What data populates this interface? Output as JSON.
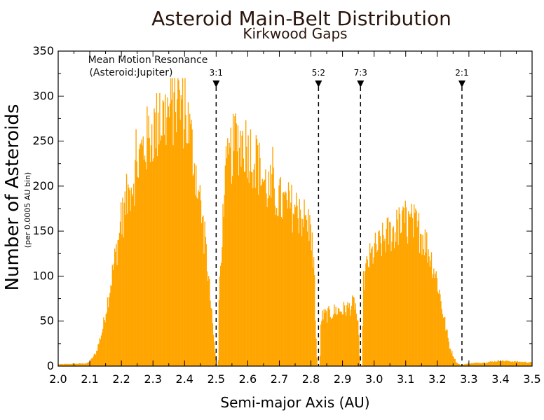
{
  "chart_data": {
    "type": "bar",
    "title": "Asteroid Main-Belt Distribution",
    "subtitle": "Kirkwood Gaps",
    "xlabel": "Semi-major Axis (AU)",
    "ylabel": "Number of Asteroids",
    "ylabel_sub": "(per 0.0005 AU bin)",
    "xlim": [
      2.0,
      3.5
    ],
    "ylim": [
      0,
      350
    ],
    "xticks": [
      "2.0",
      "2.1",
      "2.2",
      "2.3",
      "2.4",
      "2.5",
      "2.6",
      "2.7",
      "2.8",
      "2.9",
      "3.0",
      "3.1",
      "3.2",
      "3.3",
      "3.4",
      "3.5"
    ],
    "yticks": [
      "0",
      "50",
      "100",
      "150",
      "200",
      "250",
      "300",
      "350"
    ],
    "bar_color": "#ffa500",
    "annotation_title": "Mean Motion Resonance",
    "annotation_sub": "(Asteroid:Jupiter)",
    "resonances": [
      {
        "label": "3:1",
        "x": 2.5
      },
      {
        "label": "5:2",
        "x": 2.824
      },
      {
        "label": "7:3",
        "x": 2.957
      },
      {
        "label": "2:1",
        "x": 3.278
      }
    ],
    "profile": [
      [
        2.0,
        2
      ],
      [
        2.09,
        3
      ],
      [
        2.1,
        5
      ],
      [
        2.12,
        15
      ],
      [
        2.14,
        40
      ],
      [
        2.16,
        80
      ],
      [
        2.18,
        120
      ],
      [
        2.2,
        160
      ],
      [
        2.22,
        190
      ],
      [
        2.24,
        210
      ],
      [
        2.26,
        235
      ],
      [
        2.28,
        250
      ],
      [
        2.3,
        262
      ],
      [
        2.33,
        275
      ],
      [
        2.35,
        282
      ],
      [
        2.37,
        290
      ],
      [
        2.39,
        292
      ],
      [
        2.41,
        270
      ],
      [
        2.43,
        230
      ],
      [
        2.45,
        180
      ],
      [
        2.47,
        120
      ],
      [
        2.485,
        60
      ],
      [
        2.495,
        20
      ],
      [
        2.5,
        0
      ],
      [
        2.506,
        0
      ],
      [
        2.51,
        100
      ],
      [
        2.53,
        210
      ],
      [
        2.55,
        240
      ],
      [
        2.57,
        250
      ],
      [
        2.59,
        248
      ],
      [
        2.61,
        238
      ],
      [
        2.63,
        225
      ],
      [
        2.65,
        205
      ],
      [
        2.67,
        195
      ],
      [
        2.69,
        190
      ],
      [
        2.71,
        180
      ],
      [
        2.73,
        178
      ],
      [
        2.75,
        175
      ],
      [
        2.77,
        168
      ],
      [
        2.79,
        158
      ],
      [
        2.8,
        150
      ],
      [
        2.81,
        110
      ],
      [
        2.815,
        40
      ],
      [
        2.82,
        0
      ],
      [
        2.828,
        0
      ],
      [
        2.832,
        55
      ],
      [
        2.86,
        58
      ],
      [
        2.88,
        62
      ],
      [
        2.9,
        62
      ],
      [
        2.92,
        65
      ],
      [
        2.94,
        70
      ],
      [
        2.95,
        40
      ],
      [
        2.955,
        0
      ],
      [
        2.962,
        0
      ],
      [
        2.965,
        90
      ],
      [
        2.98,
        115
      ],
      [
        3.0,
        128
      ],
      [
        3.02,
        135
      ],
      [
        3.04,
        145
      ],
      [
        3.06,
        150
      ],
      [
        3.08,
        155
      ],
      [
        3.1,
        157
      ],
      [
        3.12,
        158
      ],
      [
        3.14,
        152
      ],
      [
        3.16,
        140
      ],
      [
        3.18,
        120
      ],
      [
        3.2,
        95
      ],
      [
        3.22,
        55
      ],
      [
        3.24,
        20
      ],
      [
        3.26,
        4
      ],
      [
        3.275,
        1
      ],
      [
        3.285,
        2
      ],
      [
        3.3,
        3
      ],
      [
        3.35,
        4
      ],
      [
        3.4,
        6
      ],
      [
        3.45,
        5
      ],
      [
        3.5,
        4
      ]
    ]
  }
}
